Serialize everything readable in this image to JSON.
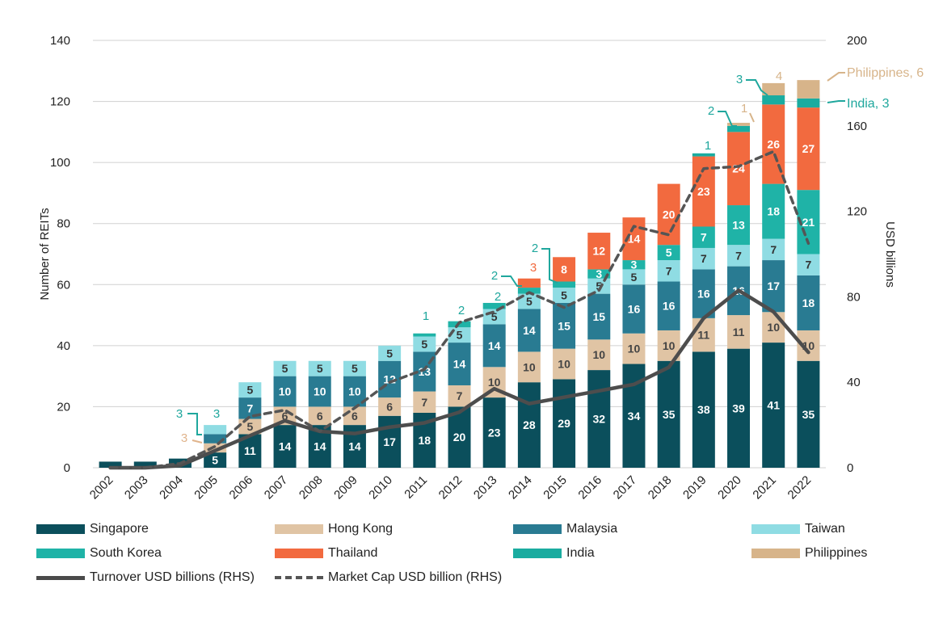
{
  "chart_data": {
    "type": "bar",
    "stacked": true,
    "categories": [
      "2002",
      "2003",
      "2004",
      "2005",
      "2006",
      "2007",
      "2008",
      "2009",
      "2010",
      "2011",
      "2012",
      "2013",
      "2014",
      "2015",
      "2016",
      "2017",
      "2018",
      "2019",
      "2020",
      "2021",
      "2022"
    ],
    "ylabel": "Number of REITs",
    "y2label": "USD billions",
    "ylim": [
      0,
      140
    ],
    "yticks": [
      "0",
      "20",
      "40",
      "60",
      "80",
      "100",
      "120",
      "140"
    ],
    "y2lim": [
      0,
      200
    ],
    "y2ticks": [
      "0",
      "40",
      "80",
      "120",
      "160",
      "200"
    ],
    "series": [
      {
        "name": "Singapore",
        "color": "#0b4f5c",
        "labelColor": "#ffffff",
        "values": [
          2,
          2,
          3,
          5,
          11,
          14,
          14,
          14,
          17,
          18,
          20,
          23,
          28,
          29,
          32,
          34,
          35,
          38,
          39,
          41,
          35
        ],
        "labels": [
          "",
          "",
          "",
          "5",
          "11",
          "14",
          "14",
          "14",
          "17",
          "18",
          "20",
          "23",
          "28",
          "29",
          "32",
          "34",
          "35",
          "38",
          "39",
          "41",
          "35"
        ]
      },
      {
        "name": "Hong Kong",
        "color": "#e0c4a4",
        "labelColor": "#444444",
        "values": [
          0,
          0,
          0,
          3,
          5,
          6,
          6,
          6,
          6,
          7,
          7,
          10,
          10,
          10,
          10,
          10,
          10,
          11,
          11,
          10,
          10
        ],
        "labels": [
          "",
          "",
          "",
          "",
          "5",
          "6",
          "6",
          "6",
          "6",
          "7",
          "7",
          "10",
          "10",
          "10",
          "10",
          "10",
          "10",
          "11",
          "11",
          "10",
          "10"
        ]
      },
      {
        "name": "Malaysia",
        "color": "#297b92",
        "labelColor": "#ffffff",
        "values": [
          0,
          0,
          0,
          3,
          7,
          10,
          10,
          10,
          12,
          13,
          14,
          14,
          14,
          15,
          15,
          16,
          16,
          16,
          16,
          17,
          18
        ],
        "labels": [
          "",
          "",
          "",
          "",
          "7",
          "10",
          "10",
          "10",
          "12",
          "13",
          "14",
          "14",
          "14",
          "15",
          "15",
          "16",
          "16",
          "16",
          "16",
          "17",
          "18"
        ]
      },
      {
        "name": "Taiwan",
        "color": "#8fdce3",
        "labelColor": "#333333",
        "values": [
          0,
          0,
          0,
          3,
          5,
          5,
          5,
          5,
          5,
          5,
          5,
          5,
          5,
          5,
          5,
          5,
          7,
          7,
          7,
          7,
          7
        ],
        "labels": [
          "",
          "",
          "",
          "",
          "5",
          "5",
          "5",
          "5",
          "5",
          "5",
          "5",
          "5",
          "5",
          "5",
          "5",
          "5",
          "7",
          "7",
          "7",
          "7",
          "7"
        ]
      },
      {
        "name": "South Korea",
        "color": "#1fb3a7",
        "labelColor": "#ffffff",
        "values": [
          0,
          0,
          0,
          0,
          0,
          0,
          0,
          0,
          0,
          1,
          2,
          2,
          2,
          2,
          3,
          3,
          5,
          7,
          13,
          18,
          21
        ],
        "labels": [
          "",
          "",
          "",
          "",
          "",
          "",
          "",
          "",
          "",
          "",
          "",
          "",
          "",
          "",
          "3",
          "3",
          "5",
          "7",
          "13",
          "18",
          "21"
        ]
      },
      {
        "name": "Thailand",
        "color": "#f26a3f",
        "labelColor": "#ffffff",
        "values": [
          0,
          0,
          0,
          0,
          0,
          0,
          0,
          0,
          0,
          0,
          0,
          0,
          3,
          8,
          12,
          14,
          20,
          23,
          24,
          26,
          27
        ],
        "labels": [
          "",
          "",
          "",
          "",
          "",
          "",
          "",
          "",
          "",
          "",
          "",
          "",
          "",
          "8",
          "12",
          "14",
          "20",
          "23",
          "24",
          "26",
          "27"
        ]
      },
      {
        "name": "India",
        "color": "#1aaca0",
        "labelColor": "#ffffff",
        "values": [
          0,
          0,
          0,
          0,
          0,
          0,
          0,
          0,
          0,
          0,
          0,
          0,
          0,
          0,
          0,
          0,
          0,
          1,
          2,
          3,
          3
        ],
        "labels": [
          "",
          "",
          "",
          "",
          "",
          "",
          "",
          "",
          "",
          "",
          "",
          "",
          "",
          "",
          "",
          "",
          "",
          "",
          "",
          "",
          ""
        ]
      },
      {
        "name": "Philippines",
        "color": "#d7b48a",
        "labelColor": "#ffffff",
        "values": [
          0,
          0,
          0,
          0,
          0,
          0,
          0,
          0,
          0,
          0,
          0,
          0,
          0,
          0,
          0,
          0,
          0,
          0,
          1,
          4,
          6
        ],
        "labels": [
          "",
          "",
          "",
          "",
          "",
          "",
          "",
          "",
          "",
          "",
          "",
          "",
          "",
          "",
          "",
          "",
          "",
          "",
          "",
          "",
          ""
        ]
      }
    ],
    "lines": [
      {
        "name": "Turnover USD billions (RHS)",
        "color": "#4d4d4d",
        "dashed": false,
        "values": [
          0,
          0,
          1,
          8,
          15,
          22,
          17,
          16,
          19,
          21,
          26,
          37,
          30,
          33,
          36,
          39,
          47,
          70,
          83,
          73,
          54
        ]
      },
      {
        "name": "Market Cap USD billion (RHS)",
        "color": "#555555",
        "dashed": true,
        "values": [
          0,
          0,
          2,
          10,
          24,
          27,
          17,
          28,
          40,
          46,
          68,
          73,
          82,
          75,
          83,
          113,
          109,
          140,
          141,
          148,
          105
        ]
      }
    ],
    "annotations": [
      {
        "text": "3",
        "color": "#e0b48c",
        "index": 5,
        "series": 1,
        "value": 3
      },
      {
        "text": "3",
        "color": "#1fa79d",
        "index": 5,
        "series": 2,
        "value": 3
      },
      {
        "text": "3",
        "color": "#1fa79d",
        "index": 5,
        "series": 3,
        "value": 3
      },
      {
        "text": "1",
        "color": "#1fa79d",
        "index": 11,
        "series": 4,
        "value": 1
      },
      {
        "text": "2",
        "color": "#1fa79d",
        "index": 12,
        "series": 4,
        "value": 2
      },
      {
        "text": "2",
        "color": "#1fa79d",
        "index": 13,
        "series": 4,
        "value": 2
      },
      {
        "text": "2",
        "color": "#1fa79d",
        "index": 14,
        "series": 4,
        "value": 2
      },
      {
        "text": "3",
        "color": "#f26a3f",
        "index": 14,
        "series": 5,
        "value": 3
      },
      {
        "text": "2",
        "color": "#1fa79d",
        "index": 15,
        "series": 4,
        "value": 2
      },
      {
        "text": "1",
        "color": "#1fa79d",
        "index": 19,
        "series": 6,
        "value": 1
      },
      {
        "text": "2",
        "color": "#1fa79d",
        "index": 20,
        "series": 6,
        "value": 2
      },
      {
        "text": "1",
        "color": "#d7b48a",
        "index": 20,
        "series": 7,
        "value": 1
      },
      {
        "text": "3",
        "color": "#1fa79d",
        "index": 21,
        "series": 6,
        "value": 3
      },
      {
        "text": "4",
        "color": "#d7b48a",
        "index": 21,
        "series": 7,
        "value": 4
      },
      {
        "text": "India, 3",
        "color": "#1fa79d",
        "index": 22,
        "series": 6,
        "value": 3
      },
      {
        "text": "Philippines, 6",
        "color": "#d7b48a",
        "index": 22,
        "series": 7,
        "value": 6
      }
    ],
    "legend": [
      "Singapore",
      "Hong Kong",
      "Malaysia",
      "Taiwan",
      "South Korea",
      "Thailand",
      "India",
      "Philippines",
      "Turnover USD billions (RHS)",
      "Market Cap USD billion (RHS)"
    ]
  }
}
